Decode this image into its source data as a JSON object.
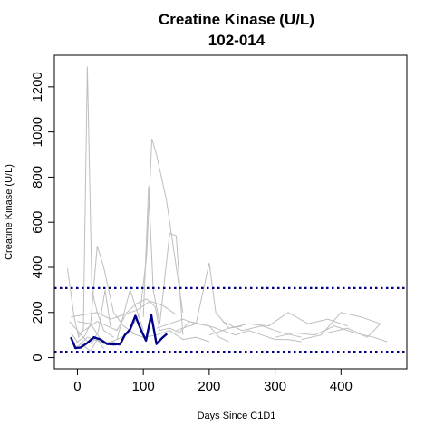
{
  "chart_data": {
    "type": "line",
    "title": "Creatine Kinase (U/L)",
    "subtitle": "102-014",
    "xlabel": "Days Since C1D1",
    "ylabel": "Creatine Kinase (U/L)",
    "xlim": [
      -35,
      500
    ],
    "ylim": [
      -50,
      1340
    ],
    "xticks": [
      0,
      100,
      200,
      300,
      400
    ],
    "xtick_labels": [
      "0",
      "100",
      "200",
      "300",
      "400"
    ],
    "yticks": [
      0,
      200,
      400,
      600,
      800,
      1000,
      1200
    ],
    "ytick_labels": [
      "0",
      "200",
      "400",
      "600",
      "800",
      "1000",
      "1200"
    ],
    "grid": false,
    "reference_lines": [
      {
        "y": 308,
        "color": "#00008b",
        "style": "dotted"
      },
      {
        "y": 26,
        "color": "#00008b",
        "style": "dotted"
      }
    ],
    "background_series_color": "#bebebe",
    "highlight_color": "#00008b",
    "background_series": [
      {
        "x": [
          -15,
          -5,
          2,
          9,
          15,
          22,
          30,
          40,
          55
        ],
        "y": [
          395,
          180,
          90,
          130,
          1290,
          300,
          200,
          120,
          90
        ]
      },
      {
        "x": [
          -12,
          0,
          12,
          22,
          32,
          42,
          50
        ],
        "y": [
          160,
          120,
          80,
          60,
          120,
          300,
          140
        ]
      },
      {
        "x": [
          -5,
          10,
          20,
          30,
          40,
          55,
          70,
          85
        ],
        "y": [
          60,
          90,
          150,
          495,
          400,
          200,
          140,
          110
        ]
      },
      {
        "x": [
          0,
          15,
          30,
          45,
          60,
          75,
          90,
          105,
          118,
          125,
          140,
          155,
          170,
          185,
          200,
          215,
          230
        ],
        "y": [
          100,
          130,
          160,
          140,
          120,
          200,
          240,
          260,
          225,
          120,
          130,
          110,
          160,
          150,
          140,
          90,
          70
        ]
      },
      {
        "x": [
          80,
          95,
          105,
          113,
          120,
          135,
          145,
          160
        ],
        "y": [
          120,
          200,
          450,
          970,
          900,
          700,
          500,
          200
        ]
      },
      {
        "x": [
          100,
          108,
          115,
          125,
          140,
          150,
          160
        ],
        "y": [
          180,
          760,
          300,
          150,
          550,
          540,
          100
        ]
      },
      {
        "x": [
          -10,
          10,
          30,
          50,
          70,
          90,
          110,
          130,
          150
        ],
        "y": [
          180,
          190,
          200,
          170,
          190,
          210,
          250,
          230,
          190
        ]
      },
      {
        "x": [
          120,
          140,
          160,
          180,
          200,
          220,
          240,
          260,
          280,
          300,
          320,
          340
        ],
        "y": [
          130,
          150,
          170,
          150,
          140,
          120,
          100,
          120,
          100,
          80,
          80,
          70
        ]
      },
      {
        "x": [
          150,
          180,
          200,
          210,
          230,
          250
        ],
        "y": [
          120,
          150,
          420,
          200,
          130,
          140
        ]
      },
      {
        "x": [
          200,
          230,
          260,
          290,
          320,
          350,
          380,
          410
        ],
        "y": [
          100,
          130,
          150,
          140,
          200,
          150,
          170,
          140
        ]
      },
      {
        "x": [
          300,
          330,
          360,
          390,
          420,
          450,
          470
        ],
        "y": [
          90,
          110,
          100,
          140,
          110,
          90,
          70
        ]
      },
      {
        "x": [
          340,
          370,
          400,
          430,
          460
        ],
        "y": [
          80,
          100,
          200,
          180,
          150
        ]
      },
      {
        "x": [
          380,
          410,
          440,
          460
        ],
        "y": [
          110,
          130,
          90,
          150
        ]
      },
      {
        "x": [
          -5,
          5,
          15,
          25,
          35,
          45,
          55,
          65
        ],
        "y": [
          40,
          60,
          90,
          80,
          70,
          60,
          70,
          50
        ]
      },
      {
        "x": [
          0,
          20,
          40,
          60,
          80,
          100
        ],
        "y": [
          160,
          150,
          60,
          80,
          300,
          120
        ]
      },
      {
        "x": [
          -10,
          0,
          10,
          20,
          30,
          40
        ],
        "y": [
          110,
          70,
          50,
          30,
          80,
          40
        ]
      },
      {
        "x": [
          60,
          80,
          100,
          120,
          140,
          160,
          180,
          200
        ],
        "y": [
          80,
          110,
          90,
          100,
          120,
          80,
          90,
          70
        ]
      },
      {
        "x": [
          220,
          250,
          280,
          310,
          340
        ],
        "y": [
          160,
          120,
          140,
          110,
          90
        ]
      }
    ],
    "series": [
      {
        "x": [
          -10,
          -3,
          5,
          15,
          25,
          35,
          45,
          55,
          65,
          72,
          80,
          88,
          96,
          104,
          112,
          120,
          128,
          136
        ],
        "y": [
          90,
          42,
          45,
          65,
          90,
          80,
          60,
          58,
          60,
          100,
          125,
          185,
          125,
          75,
          190,
          60,
          85,
          105
        ]
      }
    ]
  }
}
